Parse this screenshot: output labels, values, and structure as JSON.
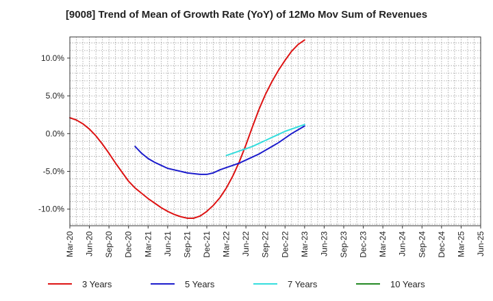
{
  "chart_data": {
    "type": "line",
    "title": "[9008]  Trend of Mean of Growth Rate (YoY) of 12Mo Mov Sum of Revenues",
    "xlabel": "",
    "ylabel": "",
    "x_tick_labels": [
      "Mar-20",
      "Jun-20",
      "Sep-20",
      "Dec-20",
      "Mar-21",
      "Jun-21",
      "Sep-21",
      "Dec-21",
      "Mar-22",
      "Jun-22",
      "Sep-22",
      "Dec-22",
      "Mar-23",
      "Jun-23",
      "Sep-23",
      "Dec-23",
      "Mar-24",
      "Jun-24",
      "Sep-24",
      "Dec-24",
      "Mar-25",
      "Jun-25"
    ],
    "y_ticks": [
      10,
      5,
      0,
      -5,
      -10
    ],
    "y_tick_labels": [
      "10.0%",
      "5.0%",
      "0.0%",
      "-5.0%",
      "-10.0%"
    ],
    "ylim": [
      -12.2,
      12.8
    ],
    "grid": true,
    "legend_position": "bottom",
    "series": [
      {
        "name": "3 Years",
        "color": "#dd1111",
        "start_index": 0,
        "values": [
          2.1,
          1.8,
          1.3,
          0.6,
          -0.3,
          -1.4,
          -2.6,
          -3.9,
          -5.1,
          -6.3,
          -7.2,
          -7.9,
          -8.6,
          -9.2,
          -9.8,
          -10.3,
          -10.7,
          -11.0,
          -11.2,
          -11.2,
          -10.9,
          -10.3,
          -9.5,
          -8.5,
          -7.2,
          -5.6,
          -3.7,
          -1.5,
          0.9,
          3.2,
          5.2,
          6.9,
          8.4,
          9.7,
          10.9,
          11.8,
          12.4
        ]
      },
      {
        "name": "5 Years",
        "color": "#1a1acc",
        "start_index": 10,
        "values": [
          -1.7,
          -2.6,
          -3.3,
          -3.8,
          -4.2,
          -4.6,
          -4.8,
          -5.0,
          -5.2,
          -5.3,
          -5.4,
          -5.4,
          -5.2,
          -4.8,
          -4.5,
          -4.2,
          -3.9,
          -3.5,
          -3.1,
          -2.7,
          -2.2,
          -1.7,
          -1.2,
          -0.6,
          0.0,
          0.5,
          1.0
        ]
      },
      {
        "name": "7 Years",
        "color": "#33dddd",
        "start_index": 24,
        "values": [
          -2.9,
          -2.6,
          -2.3,
          -2.0,
          -1.7,
          -1.3,
          -0.9,
          -0.5,
          -0.1,
          0.3,
          0.6,
          0.9,
          1.2
        ]
      },
      {
        "name": "10 Years",
        "color": "#228822",
        "start_index": 0,
        "values": []
      }
    ]
  }
}
